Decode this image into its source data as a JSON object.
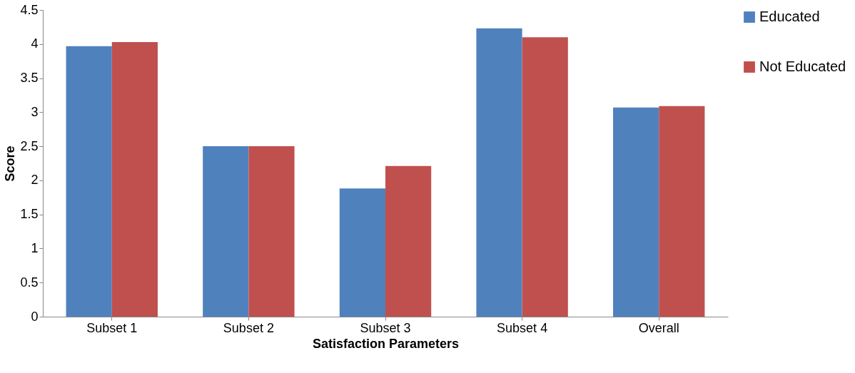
{
  "chart_data": {
    "type": "bar",
    "xlabel": "Satisfaction Parameters",
    "ylabel": "Score",
    "categories": [
      "Subset 1",
      "Subset 2",
      "Subset 3",
      "Subset 4",
      "Overall"
    ],
    "series": [
      {
        "name": "Educated",
        "color": "#4f81bd",
        "values": [
          3.97,
          2.5,
          1.88,
          4.23,
          3.07
        ]
      },
      {
        "name": "Not Educated",
        "color": "#c0504d",
        "values": [
          4.03,
          2.5,
          2.21,
          4.1,
          3.09
        ]
      }
    ],
    "ylim": [
      0,
      4.5
    ],
    "yticks": [
      0,
      0.5,
      1,
      1.5,
      2,
      2.5,
      3,
      3.5,
      4,
      4.5
    ],
    "grid": false,
    "legend": "right"
  }
}
